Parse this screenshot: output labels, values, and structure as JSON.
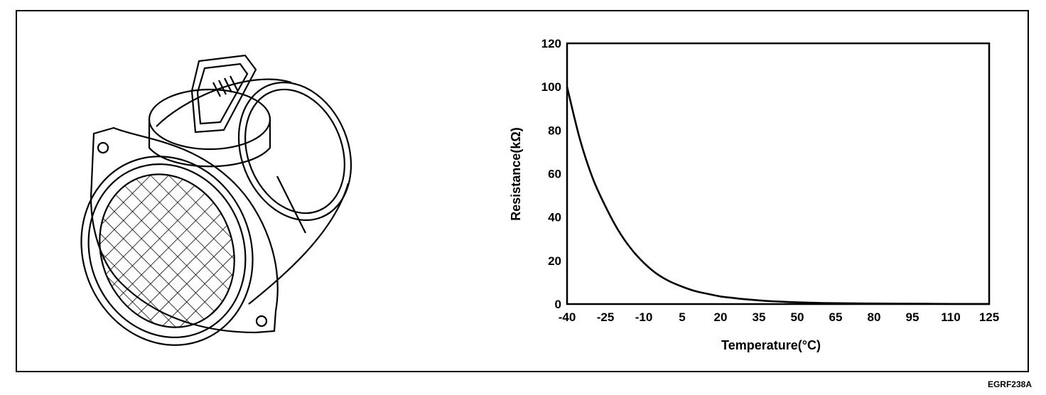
{
  "figure_code": "EGRF238A",
  "illustration": {
    "icon": "mass-air-flow-sensor"
  },
  "chart_data": {
    "type": "line",
    "xlabel": "Temperature(°C)",
    "ylabel": "Resistance(kΩ)",
    "xlim": [
      -40,
      125
    ],
    "ylim": [
      0,
      120
    ],
    "x_ticks": [
      "-40",
      "-25",
      "-10",
      "5",
      "20",
      "35",
      "50",
      "65",
      "80",
      "95",
      "110",
      "125"
    ],
    "y_ticks": [
      "0",
      "20",
      "40",
      "60",
      "80",
      "100",
      "120"
    ],
    "grid": false,
    "series": [
      {
        "x": [
          -40,
          -35,
          -30,
          -25,
          -20,
          -15,
          -10,
          -5,
          0,
          5,
          10,
          15,
          20,
          25,
          30,
          35,
          40,
          50,
          60,
          70,
          80,
          90,
          100,
          110,
          125
        ],
        "y": [
          100,
          76,
          58,
          45,
          34,
          25.5,
          19,
          14,
          10.5,
          8,
          6,
          4.7,
          3.5,
          2.8,
          2.2,
          1.7,
          1.3,
          0.8,
          0.5,
          0.35,
          0.25,
          0.18,
          0.12,
          0.08,
          0.05
        ]
      }
    ]
  }
}
